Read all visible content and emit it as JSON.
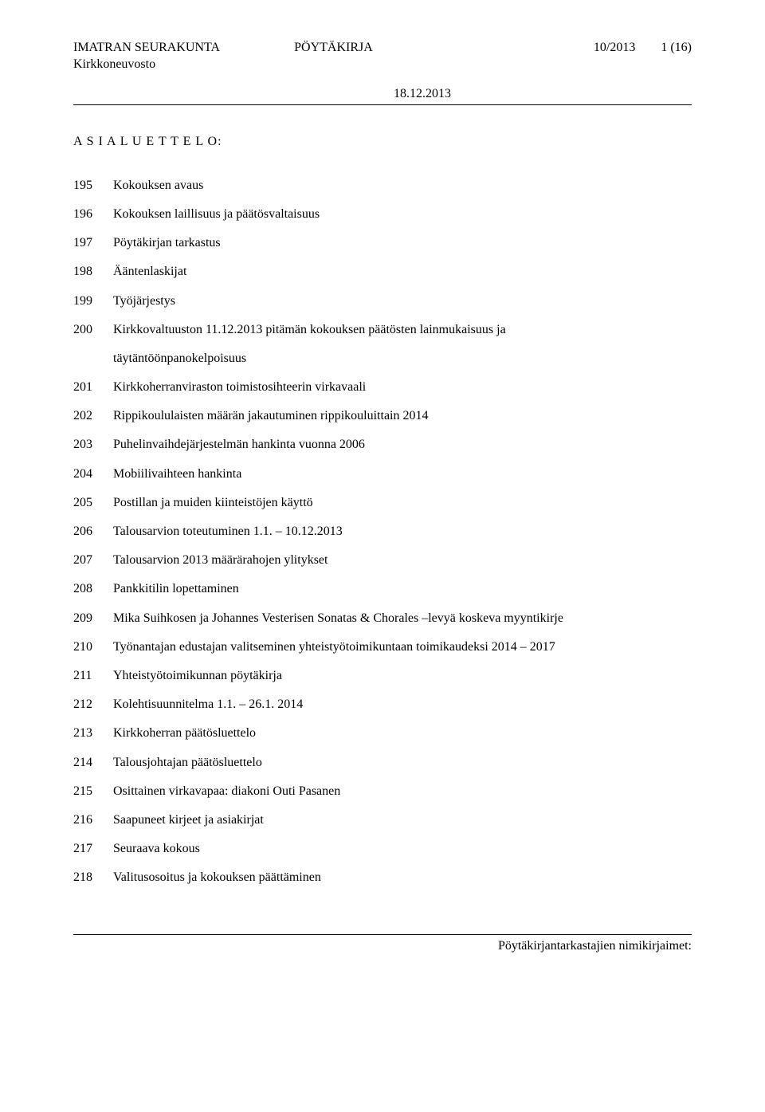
{
  "header": {
    "org": "IMATRAN SEURAKUNTA",
    "sub_org": "Kirkkoneuvosto",
    "doc_type": "PÖYTÄKIRJA",
    "doc_num": "10/2013",
    "page": "1 (16)",
    "date": "18.12.2013"
  },
  "section_title": "A S I A L U E T T E L O:",
  "agenda": [
    {
      "num": "195",
      "text": "Kokouksen avaus"
    },
    {
      "num": "196",
      "text": "Kokouksen laillisuus ja päätösvaltaisuus"
    },
    {
      "num": "197",
      "text": "Pöytäkirjan tarkastus"
    },
    {
      "num": "198",
      "text": "Ääntenlaskijat"
    },
    {
      "num": "199",
      "text": "Työjärjestys"
    },
    {
      "num": "200",
      "text": "Kirkkovaltuuston 11.12.2013 pitämän kokouksen päätösten lainmukaisuus ja",
      "sub": "täytäntöönpanokelpoisuus"
    },
    {
      "num": "201",
      "text": "Kirkkoherranviraston toimistosihteerin virkavaali"
    },
    {
      "num": "202",
      "text": "Rippikoululaisten määrän jakautuminen rippikouluittain 2014"
    },
    {
      "num": "203",
      "text": "Puhelinvaihdejärjestelmän hankinta vuonna 2006"
    },
    {
      "num": "204",
      "text": "Mobiilivaihteen hankinta"
    },
    {
      "num": "205",
      "text": "Postillan ja muiden kiinteistöjen käyttö"
    },
    {
      "num": "206",
      "text": "Talousarvion toteutuminen 1.1. – 10.12.2013"
    },
    {
      "num": "207",
      "text": "Talousarvion 2013 määrärahojen ylitykset"
    },
    {
      "num": "208",
      "text": "Pankkitilin lopettaminen"
    },
    {
      "num": "209",
      "text": "Mika Suihkosen ja Johannes Vesterisen Sonatas & Chorales –levyä koskeva myyntikirje"
    },
    {
      "num": "210",
      "text": "Työnantajan edustajan valitseminen yhteistyötoimikuntaan toimikaudeksi 2014 – 2017"
    },
    {
      "num": "211",
      "text": "Yhteistyötoimikunnan pöytäkirja"
    },
    {
      "num": "212",
      "text": "Kolehtisuunnitelma 1.1. – 26.1. 2014"
    },
    {
      "num": "213",
      "text": "Kirkkoherran päätösluettelo"
    },
    {
      "num": "214",
      "text": "Talousjohtajan päätösluettelo"
    },
    {
      "num": "215",
      "text": "Osittainen virkavapaa: diakoni Outi Pasanen"
    },
    {
      "num": "216",
      "text": "Saapuneet kirjeet ja asiakirjat"
    },
    {
      "num": "217",
      "text": "Seuraava kokous"
    },
    {
      "num": "218",
      "text": "Valitusosoitus ja kokouksen päättäminen"
    }
  ],
  "footer": "Pöytäkirjantarkastajien nimikirjaimet:"
}
